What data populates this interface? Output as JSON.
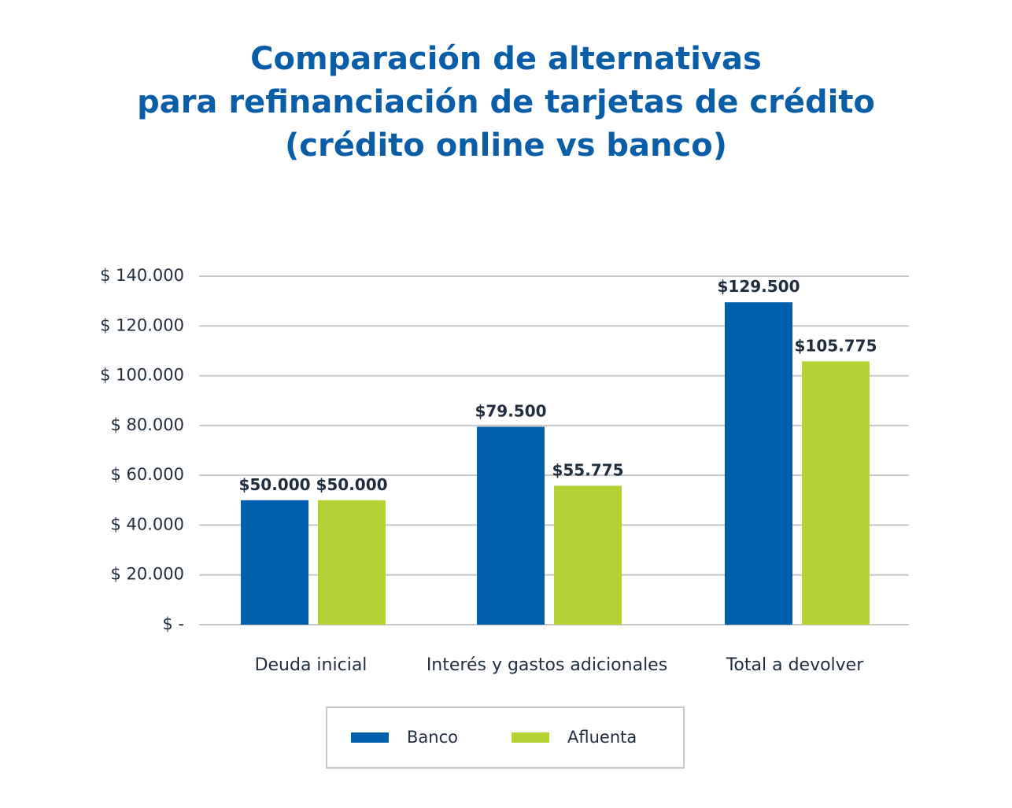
{
  "title_lines": [
    "Comparación de alternativas",
    "para refinanciación de tarjetas de crédito",
    "(crédito online vs banco)"
  ],
  "colors": {
    "banco": "#0060ae",
    "afluenta": "#b3d234",
    "title": "#0a5ea8",
    "grid": "#c8c8c8",
    "text": "#1f2d3d"
  },
  "chart_data": {
    "type": "bar",
    "categories": [
      "Deuda inicial",
      "Interés y gastos adicionales",
      "Total a devolver"
    ],
    "series": [
      {
        "name": "Banco",
        "values": [
          50000,
          79500,
          129500
        ],
        "labels": [
          "$50.000",
          "$79.500",
          "$129.500"
        ],
        "color": "#0060ae"
      },
      {
        "name": "Afluenta",
        "values": [
          50000,
          55775,
          105775
        ],
        "labels": [
          "$50.000",
          "$55.775",
          "$105.775"
        ],
        "color": "#b3d234"
      }
    ],
    "ylim": [
      0,
      140000
    ],
    "yticks": [
      0,
      20000,
      40000,
      60000,
      80000,
      100000,
      120000,
      140000
    ],
    "ytick_labels": [
      "$ -",
      "$ 20.000",
      "$ 40.000",
      "$ 60.000",
      "$ 80.000",
      "$ 100.000",
      "$ 120.000",
      "$ 140.000"
    ],
    "grid": true,
    "legend_position": "bottom-center"
  }
}
